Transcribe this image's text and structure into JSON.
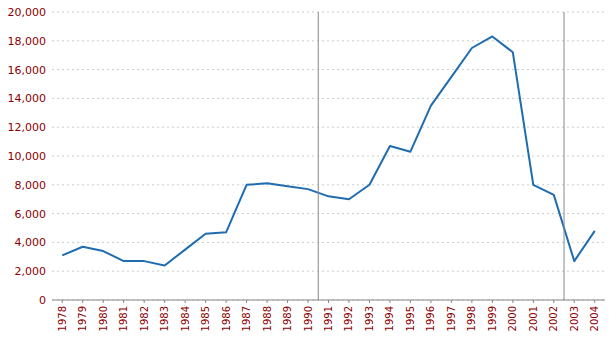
{
  "chart_data": {
    "type": "line",
    "x": [
      1978,
      1979,
      1980,
      1981,
      1982,
      1983,
      1984,
      1985,
      1986,
      1987,
      1988,
      1989,
      1990,
      1991,
      1992,
      1993,
      1994,
      1995,
      1996,
      1997,
      1998,
      1999,
      2000,
      2001,
      2002,
      2003,
      2004
    ],
    "values": [
      3100,
      3700,
      3400,
      2700,
      2700,
      2400,
      3500,
      4600,
      4700,
      8000,
      8100,
      7900,
      7700,
      7200,
      7000,
      8000,
      10700,
      10300,
      13500,
      15500,
      17500,
      18300,
      17200,
      8000,
      7300,
      2700,
      4800
    ],
    "color": "#1F6CB0",
    "xlim": [
      1977.5,
      2004.5
    ],
    "xticks": [
      1978,
      1979,
      1980,
      1981,
      1982,
      1983,
      1984,
      1985,
      1986,
      1987,
      1988,
      1989,
      1990,
      1991,
      1992,
      1993,
      1994,
      1995,
      1996,
      1997,
      1998,
      1999,
      2000,
      2001,
      2002,
      2003,
      2004
    ],
    "ylim": [
      0,
      20000
    ],
    "yticks": [
      0,
      {
        "value": 2000,
        "label": "2,000"
      },
      {
        "value": 4000,
        "label": "4,000"
      },
      {
        "value": 6000,
        "label": "6,000"
      },
      {
        "value": 8000,
        "label": "8,000"
      },
      {
        "value": 10000,
        "label": "10,000"
      },
      {
        "value": 12000,
        "label": "12,000"
      },
      {
        "value": 14000,
        "label": "14,000"
      },
      {
        "value": 16000,
        "label": "16,000"
      },
      {
        "value": 18000,
        "label": "18,000"
      },
      {
        "value": 20000,
        "label": "20,000"
      }
    ],
    "vlines": [
      1990.5,
      2002.5
    ],
    "grid": true
  }
}
